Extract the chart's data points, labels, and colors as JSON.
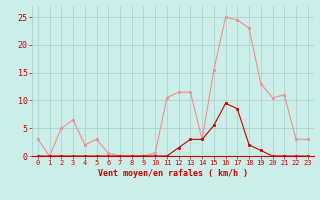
{
  "hours": [
    0,
    1,
    2,
    3,
    4,
    5,
    6,
    7,
    8,
    9,
    10,
    11,
    12,
    13,
    14,
    15,
    16,
    17,
    18,
    19,
    20,
    21,
    22,
    23
  ],
  "rafales": [
    3,
    0,
    5,
    6.5,
    2,
    3,
    0.5,
    0,
    0,
    0,
    0.5,
    10.5,
    11.5,
    11.5,
    3,
    15.5,
    25,
    24.5,
    23,
    13,
    10.5,
    11,
    3,
    3
  ],
  "moyen": [
    0,
    0,
    0,
    0,
    0,
    0,
    0,
    0,
    0,
    0,
    0,
    0,
    1.5,
    3,
    3,
    5.5,
    9.5,
    8.5,
    2,
    1,
    0,
    0,
    0,
    0
  ],
  "bg_color": "#cceee8",
  "grid_color": "#aacccc",
  "line_color_rafales": "#f09090",
  "line_color_moyen": "#cc0000",
  "xlabel": "Vent moyen/en rafales ( km/h )",
  "ylabel_ticks": [
    0,
    5,
    10,
    15,
    20,
    25
  ],
  "ylim": [
    0,
    27
  ],
  "xlabel_color": "#cc0000",
  "tick_color": "#cc0000",
  "tick_fontsize": 5,
  "xlabel_fontsize": 6,
  "linewidth": 0.8,
  "markersize": 2
}
